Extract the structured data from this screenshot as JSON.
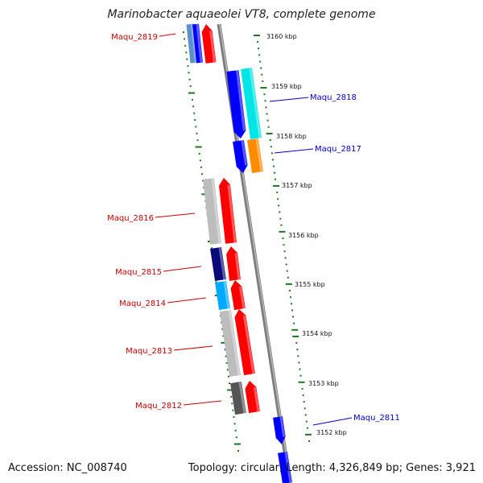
{
  "title": "Marinobacter aquaeolei VT8, complete genome",
  "footer": {
    "accession": "Accession: NC_008740",
    "summary": "Topology: circular; Length: 4,326,849 bp; Genes: 3,921"
  },
  "ticks": [
    "3160 kbp",
    "3159 kbp",
    "3158 kbp",
    "3157 kbp",
    "3156 kbp",
    "3155 kbp",
    "3154 kbp",
    "3153 kbp",
    "3152 kbp"
  ],
  "labels": [
    {
      "text": "Maqu_2819",
      "side": "left",
      "color": "#cc0000"
    },
    {
      "text": "Maqu_2818",
      "side": "right",
      "color": "#0000cc"
    },
    {
      "text": "Maqu_2817",
      "side": "right",
      "color": "#0000cc"
    },
    {
      "text": "Maqu_2816",
      "side": "left",
      "color": "#cc0000"
    },
    {
      "text": "Maqu_2815",
      "side": "left",
      "color": "#cc0000"
    },
    {
      "text": "Maqu_2814",
      "side": "left",
      "color": "#cc0000"
    },
    {
      "text": "Maqu_2813",
      "side": "left",
      "color": "#cc0000"
    },
    {
      "text": "Maqu_2812",
      "side": "left",
      "color": "#cc0000"
    },
    {
      "text": "Maqu_2811",
      "side": "right",
      "color": "#0000cc"
    }
  ],
  "colors": {
    "forward": "#ff0000",
    "reverse": "#0000ff",
    "backbone": "#8a8a8a",
    "tick": "#1a7a1a"
  }
}
